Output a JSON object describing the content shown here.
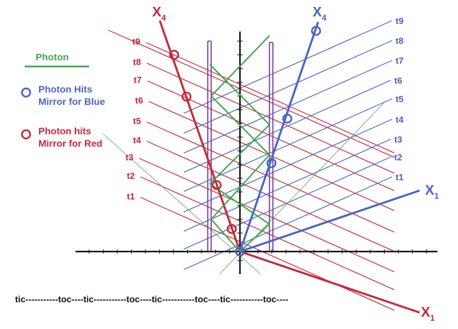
{
  "colors": {
    "red": "#c8283a",
    "blue": "#4a64c8",
    "green": "#3aa84a",
    "purple": "#7a3a9a",
    "axis": "#111111",
    "background": "#ffffff"
  },
  "legend": {
    "photon_label": "Photon",
    "blue_hits_line1": "Photon Hits",
    "blue_hits_line2": "Mirror for Blue",
    "red_hits_line1": "Photon hits",
    "red_hits_line2": "Mirror for  Red"
  },
  "axes": {
    "red_x4_label": "X",
    "red_x4_sub": "4",
    "blue_x4_label": "X",
    "blue_x4_sub": "4",
    "blue_x1_label": "X",
    "blue_x1_sub": "1",
    "red_x1_label": "X",
    "red_x1_sub": "1"
  },
  "red_time_labels": [
    "t1",
    "t2",
    "t3",
    "t4",
    "t5",
    "t6",
    "t7",
    "t8",
    "t9"
  ],
  "blue_time_labels": [
    "t1",
    "t2",
    "t3",
    "t4",
    "t5",
    "t6",
    "t7",
    "t8",
    "t9"
  ],
  "timing_text": "tic-----------toc----tic-----------toc----tic-----------toc----tic-----------toc----"
}
